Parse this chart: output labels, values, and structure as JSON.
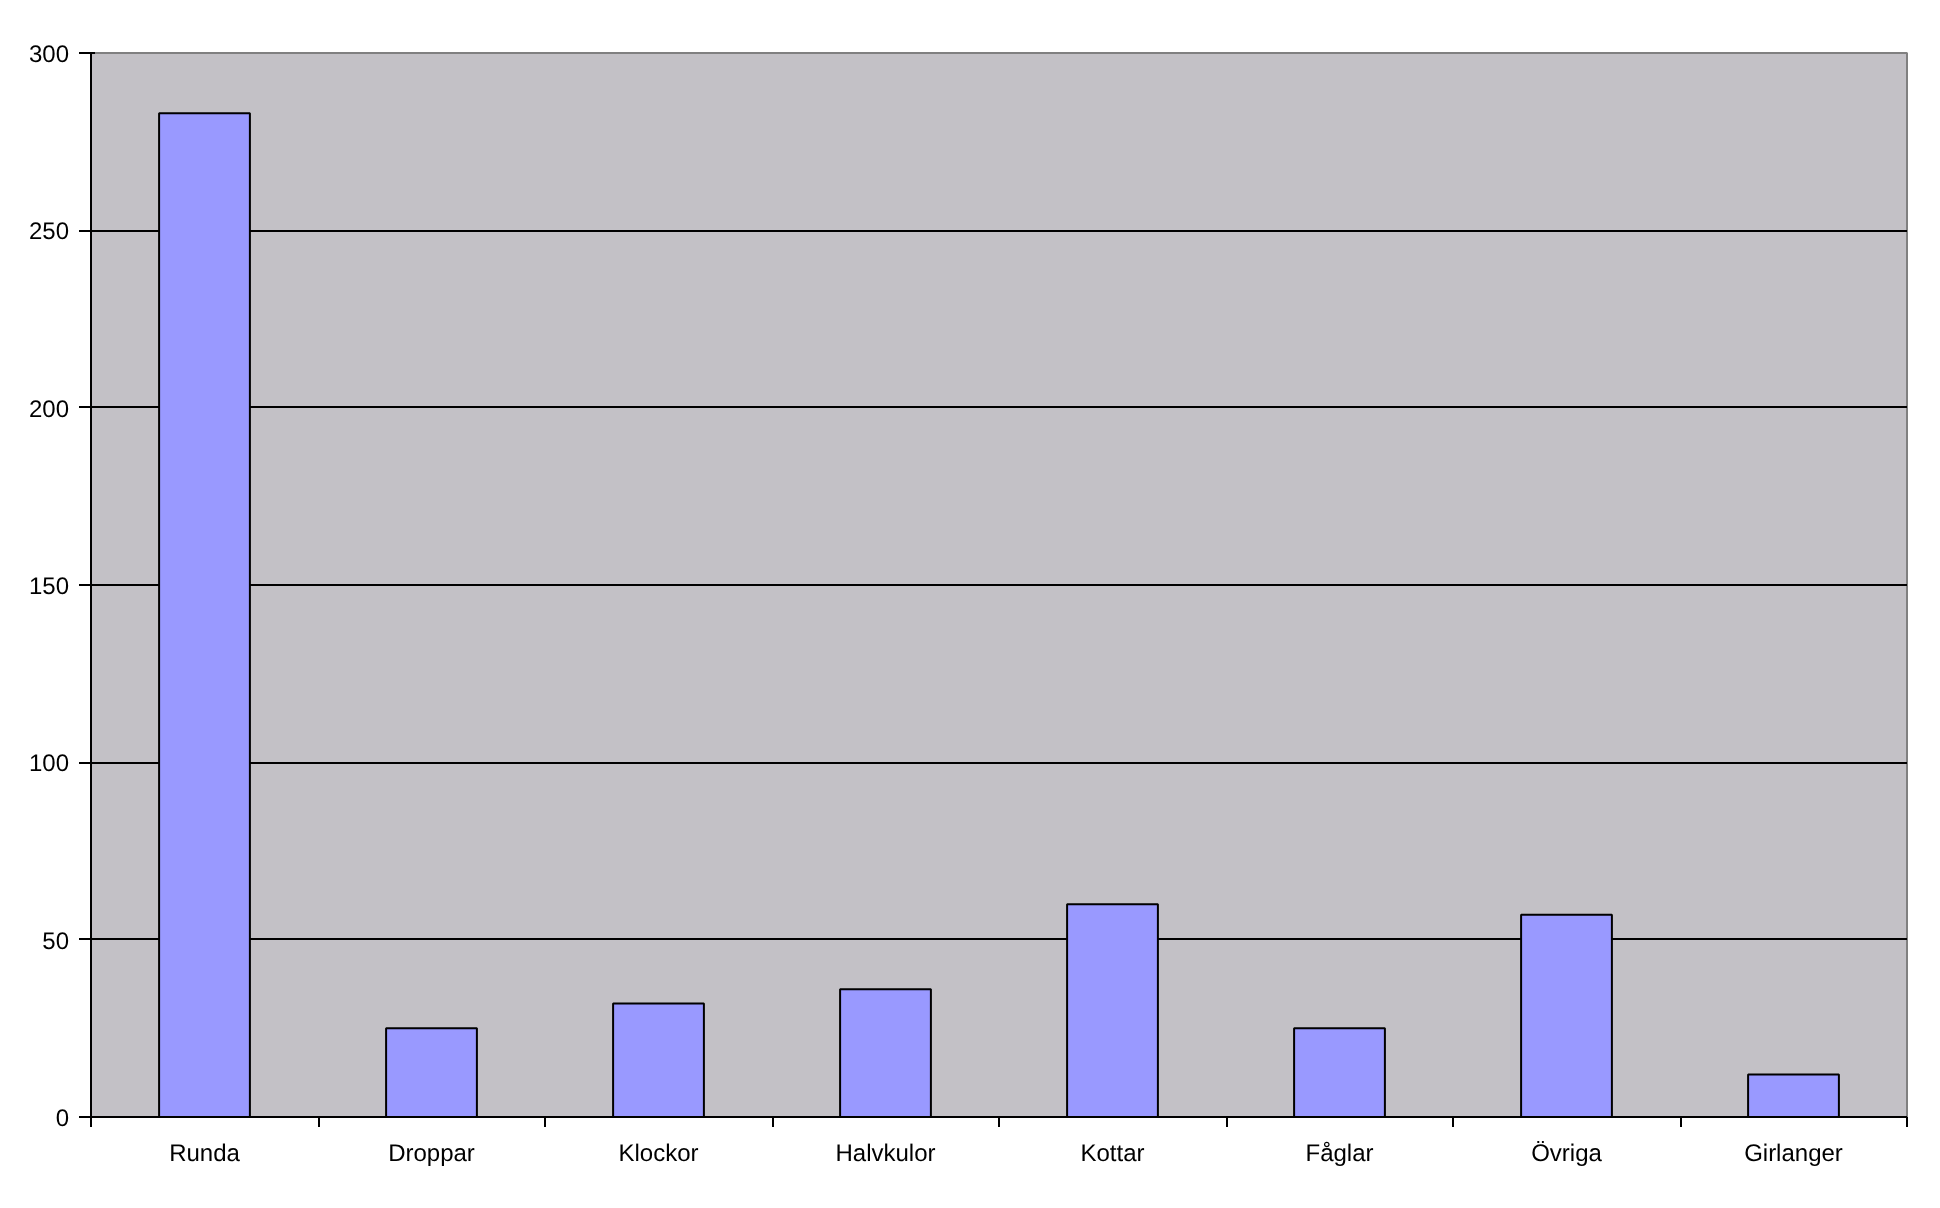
{
  "chart_data": {
    "type": "bar",
    "categories": [
      "Runda",
      "Droppar",
      "Klockor",
      "Halvkulor",
      "Kottar",
      "Fåglar",
      "Övriga",
      "Girlanger"
    ],
    "values": [
      283,
      25,
      32,
      36,
      60,
      25,
      57,
      12
    ],
    "color": "#9999ff",
    "ylim": [
      0,
      300
    ],
    "yticks": [
      0,
      50,
      100,
      150,
      200,
      250,
      300
    ],
    "grid": "y"
  }
}
